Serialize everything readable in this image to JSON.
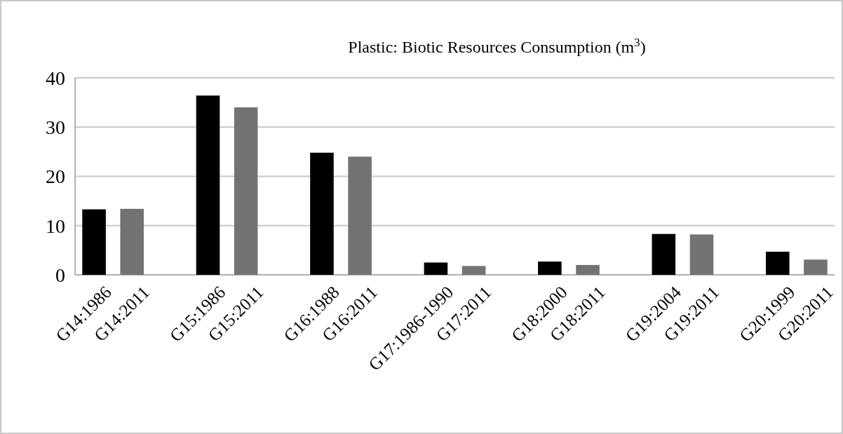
{
  "chart_data": {
    "type": "bar",
    "title": "Plastic: Biotic Resources Consumption (m$^{3}$)",
    "categories": [
      "G14:1986",
      "G14:2011",
      null,
      "G15:1986",
      "G15:2011",
      null,
      "G16:1988",
      "G16:2011",
      null,
      "G17:1986-1990",
      "G17:2011",
      null,
      "G18:2000",
      "G18:2011",
      null,
      "G19:2004",
      "G19:2011",
      null,
      "G20:1999",
      "G20:2011"
    ],
    "values": [
      13.3,
      13.4,
      null,
      36.4,
      34.0,
      null,
      24.8,
      24.0,
      null,
      2.5,
      1.8,
      null,
      2.7,
      2.0,
      null,
      8.3,
      8.2,
      null,
      4.7,
      3.1
    ],
    "colors": [
      "#000000",
      "#737373",
      null,
      "#000000",
      "#737373",
      null,
      "#000000",
      "#737373",
      null,
      "#000000",
      "#737373",
      null,
      "#000000",
      "#737373",
      null,
      "#000000",
      "#737373",
      null,
      "#000000",
      "#737373"
    ],
    "ylim": [
      0,
      40
    ],
    "yticks": [
      0,
      10,
      20,
      30,
      40
    ],
    "grid": "y"
  }
}
